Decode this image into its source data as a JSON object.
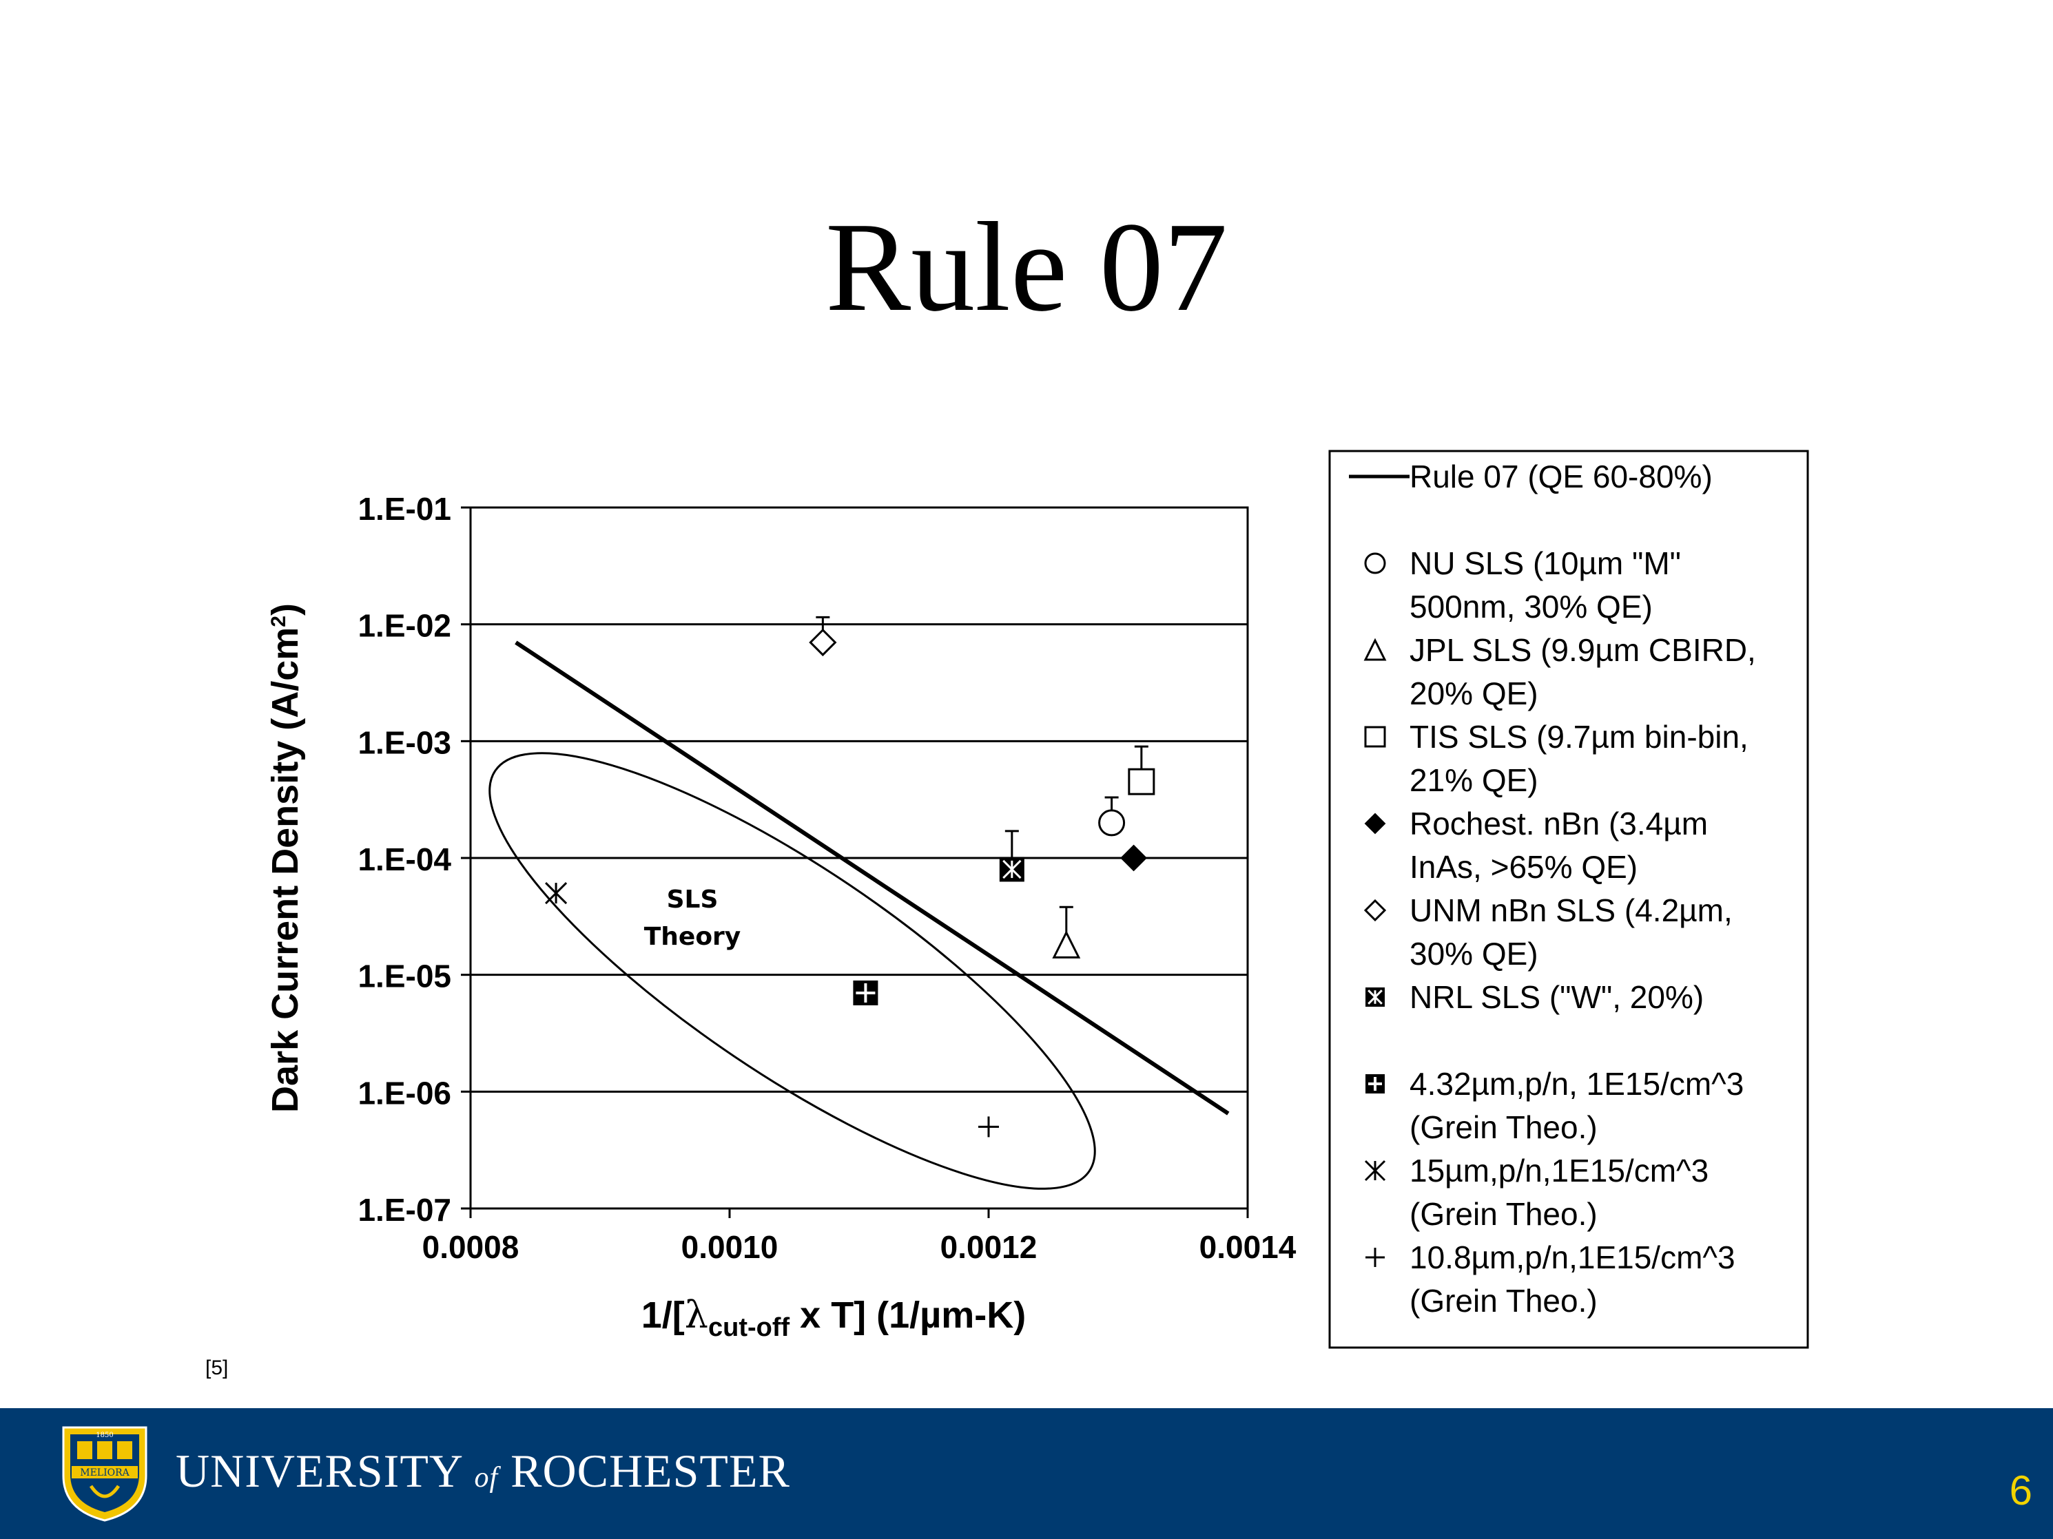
{
  "slide": {
    "title": "Rule 07",
    "reference": "[5]",
    "page_number": "6"
  },
  "footer": {
    "university_pre": "UNIVERSITY",
    "university_of": "of",
    "university_post": "ROCHESTER",
    "seal_text": "MELIORA",
    "seal_year": "1850",
    "bar_color": "#003a70",
    "page_number_color": "#f2d300"
  },
  "chart_data": {
    "type": "scatter",
    "xlabel_pre": "1/[",
    "xlabel_sym": "λ",
    "xlabel_sub": "cut-off",
    "xlabel_post": " x T] (1/µm-K)",
    "ylabel": "Dark Current Density (A/cm",
    "ylabel_sup": "2",
    "ylabel_end": ")",
    "xlim": [
      0.0008,
      0.0014
    ],
    "ylim": [
      1e-07,
      0.1
    ],
    "y_scale": "log",
    "x_ticks": [
      "0.0008",
      "0.0010",
      "0.0012",
      "0.0014"
    ],
    "x_tick_values": [
      0.0008,
      0.001,
      0.0012,
      0.0014
    ],
    "y_ticks": [
      "1.E-01",
      "1.E-02",
      "1.E-03",
      "1.E-04",
      "1.E-05",
      "1.E-06",
      "1.E-07"
    ],
    "y_tick_values": [
      0.1,
      0.01,
      0.001,
      0.0001,
      1e-05,
      1e-06,
      1e-07
    ],
    "grid": "horizontal",
    "legend_position": "right",
    "annotation": [
      "SLS",
      "Theory"
    ],
    "rule07_line": {
      "x": [
        0.000835,
        0.001385
      ],
      "y": [
        0.007,
        6.5e-07
      ]
    },
    "ellipse_region": {
      "label": "SLS Theory",
      "center": [
        0.0011,
        3.5e-06
      ]
    },
    "series": [
      {
        "name": "Rule 07 (QE 60-80%)",
        "marker": "line",
        "points": []
      },
      {
        "name": "NU SLS (10µm \"M\" 500nm, 30% QE)",
        "label_lines": [
          "NU SLS (10µm \"M\"",
          "500nm, 30% QE)"
        ],
        "marker": "circle-open",
        "points": [
          {
            "x": 0.001295,
            "y": 0.0002,
            "y_err_high": 0.00033
          }
        ]
      },
      {
        "name": "JPL SLS (9.9µm CBIRD, 20% QE)",
        "label_lines": [
          "JPL SLS (9.9µm CBIRD,",
          "20% QE)"
        ],
        "marker": "triangle-open",
        "points": [
          {
            "x": 0.00126,
            "y": 1.8e-05,
            "y_err_high": 3.8e-05
          }
        ]
      },
      {
        "name": "TIS SLS (9.7µm bin-bin, 21% QE)",
        "label_lines": [
          "TIS SLS (9.7µm bin-bin,",
          "21% QE)"
        ],
        "marker": "square-open",
        "points": [
          {
            "x": 0.001318,
            "y": 0.00045,
            "y_err_high": 0.0009
          }
        ]
      },
      {
        "name": "Rochest. nBn (3.4µm InAs, >65% QE)",
        "label_lines": [
          "Rochest. nBn (3.4µm",
          "InAs, >65% QE)"
        ],
        "marker": "diamond-filled",
        "points": [
          {
            "x": 0.001312,
            "y": 0.0001
          }
        ]
      },
      {
        "name": "UNM nBn SLS (4.2µm, 30% QE)",
        "label_lines": [
          "UNM nBn SLS (4.2µm,",
          "30% QE)"
        ],
        "marker": "diamond-open",
        "points": [
          {
            "x": 0.001072,
            "y": 0.007,
            "y_err_high": 0.0115
          }
        ]
      },
      {
        "name": "NRL SLS (\"W\", 20%)",
        "label_lines": [
          "NRL SLS (\"W\", 20%)"
        ],
        "marker": "square-asterisk",
        "points": [
          {
            "x": 0.001218,
            "y": 8e-05,
            "y_err_high": 0.00017
          }
        ]
      },
      {
        "name": "4.32µm,p/n, 1E15/cm^3 (Grein Theo.)",
        "label_lines": [
          "4.32µm,p/n, 1E15/cm^3",
          "(Grein Theo.)"
        ],
        "marker": "square-plus",
        "points": [
          {
            "x": 0.001105,
            "y": 7e-06
          }
        ]
      },
      {
        "name": "15µm,p/n,1E15/cm^3 (Grein Theo.)",
        "label_lines": [
          "15µm,p/n,1E15/cm^3",
          "(Grein Theo.)"
        ],
        "marker": "asterisk",
        "points": [
          {
            "x": 0.000866,
            "y": 5e-05
          }
        ]
      },
      {
        "name": "10.8µm,p/n,1E15/cm^3 (Grein Theo.)",
        "label_lines": [
          "10.8µm,p/n,1E15/cm^3",
          "(Grein Theo.)"
        ],
        "marker": "plus",
        "points": [
          {
            "x": 0.0012,
            "y": 5e-07
          }
        ]
      }
    ]
  }
}
